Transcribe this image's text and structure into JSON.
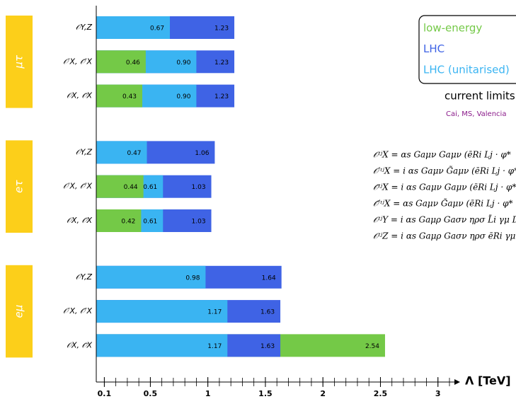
{
  "chart_data": {
    "type": "bar",
    "groups": [
      "μτ",
      "eτ",
      "eμ"
    ],
    "categories": [
      "𝒪Y,Z",
      "𝒪′X, 𝒪̄′X",
      "𝒪X, 𝒪̄X",
      "𝒪Y,Z",
      "𝒪′X, 𝒪̄′X",
      "𝒪X, 𝒪̄X",
      "𝒪Y,Z",
      "𝒪′X, 𝒪̄′X",
      "𝒪X, 𝒪̄X"
    ],
    "series": [
      {
        "name": "low-energy",
        "color": "#74c947",
        "values": [
          null,
          0.46,
          0.43,
          null,
          0.44,
          0.42,
          null,
          null,
          2.54
        ],
        "value_labels": [
          null,
          "0.46",
          "0.43",
          null,
          "0.44",
          "0.42",
          null,
          null,
          "2.54"
        ]
      },
      {
        "name": "LHC",
        "color": "#3f63e5",
        "values": [
          1.23,
          1.23,
          1.23,
          1.06,
          1.03,
          1.03,
          1.64,
          1.63,
          1.63
        ],
        "value_labels": [
          "1.23",
          "1.23",
          "1.23",
          "1.06",
          "1.03",
          "1.03",
          "1.64",
          "1.63",
          "1.63"
        ]
      },
      {
        "name": "LHC (unitarised)",
        "color": "#3ab4f2",
        "values": [
          0.67,
          0.9,
          0.9,
          0.47,
          0.61,
          0.61,
          0.98,
          1.17,
          1.17
        ],
        "value_labels": [
          "0.67",
          "0.90",
          "0.90",
          "0.47",
          "0.61",
          "0.61",
          "0.98",
          "1.17",
          "1.17"
        ]
      }
    ],
    "xlabel": "Λ [TeV]",
    "xlim": [
      0.03,
      3.18
    ],
    "xticks": [
      0.1,
      0.5,
      1,
      1.5,
      2,
      2.5,
      3
    ],
    "xminorticks": [
      0.1,
      0.2,
      0.3,
      0.4,
      0.5,
      0.6,
      0.7,
      0.8,
      0.9,
      1,
      1.1,
      1.2,
      1.3,
      1.4,
      1.5,
      1.6,
      1.7,
      1.8,
      1.9,
      2,
      2.1,
      2.2,
      2.3,
      2.4,
      2.5,
      2.6,
      2.7,
      2.8,
      2.9,
      3,
      3.1
    ],
    "legend_position": "upper right",
    "legend_title": "current limits",
    "credit": "Cai, MS, Valencia",
    "equations": [
      "𝒪ᶦʲX = αs Gaμν Gaμν (ēRi Lj · φ*",
      "𝒪′ᶦʲX = i αs Gaμν G̃aμν (ēRi Lj · φ*",
      "𝒪̄ᶦʲX = i αs Gaμν Gaμν (ēRi Lj · φ*",
      "𝒪̄′ᶦʲX = αs Gaμν G̃aμν (ēRi Lj · φ*",
      "𝒪ᶦʲY = i αs Gaμρ Gaσν ηρσ L̄i γμ Dν",
      "𝒪ᶦʲZ = i αs Gaμρ Gaσν ηρσ ēRi γμ Dν"
    ]
  }
}
